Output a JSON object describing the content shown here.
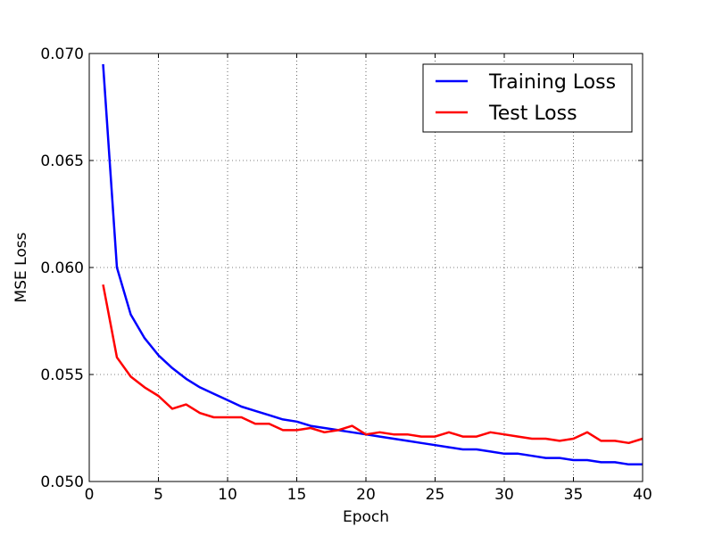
{
  "chart_data": {
    "type": "line",
    "title": "",
    "xlabel": "Epoch",
    "ylabel": "MSE Loss",
    "xlim": [
      0,
      40
    ],
    "ylim": [
      0.05,
      0.07
    ],
    "x_ticks": [
      0,
      5,
      10,
      15,
      20,
      25,
      30,
      35,
      40
    ],
    "y_ticks": [
      0.05,
      0.055,
      0.06,
      0.065,
      0.07
    ],
    "x_tick_labels": [
      "0",
      "5",
      "10",
      "15",
      "20",
      "25",
      "30",
      "35",
      "40"
    ],
    "y_tick_labels": [
      "0.050",
      "0.055",
      "0.060",
      "0.065",
      "0.070"
    ],
    "grid": true,
    "legend_position": "top-right",
    "x": [
      1,
      2,
      3,
      4,
      5,
      6,
      7,
      8,
      9,
      10,
      11,
      12,
      13,
      14,
      15,
      16,
      17,
      18,
      19,
      20,
      21,
      22,
      23,
      24,
      25,
      26,
      27,
      28,
      29,
      30,
      31,
      32,
      33,
      34,
      35,
      36,
      37,
      38,
      39,
      40
    ],
    "series": [
      {
        "name": "Training Loss",
        "color": "#0000ff",
        "values": [
          0.0695,
          0.06,
          0.0578,
          0.0567,
          0.0559,
          0.0553,
          0.0548,
          0.0544,
          0.0541,
          0.0538,
          0.0535,
          0.0533,
          0.0531,
          0.0529,
          0.0528,
          0.0526,
          0.0525,
          0.0524,
          0.0523,
          0.0522,
          0.0521,
          0.052,
          0.0519,
          0.0518,
          0.0517,
          0.0516,
          0.0515,
          0.0515,
          0.0514,
          0.0513,
          0.0513,
          0.0512,
          0.0511,
          0.0511,
          0.051,
          0.051,
          0.0509,
          0.0509,
          0.0508,
          0.0508
        ]
      },
      {
        "name": "Test Loss",
        "color": "#ff0000",
        "values": [
          0.0592,
          0.0558,
          0.0549,
          0.0544,
          0.054,
          0.0534,
          0.0536,
          0.0532,
          0.053,
          0.053,
          0.053,
          0.0527,
          0.0527,
          0.0524,
          0.0524,
          0.0525,
          0.0523,
          0.0524,
          0.0526,
          0.0522,
          0.0523,
          0.0522,
          0.0522,
          0.0521,
          0.0521,
          0.0523,
          0.0521,
          0.0521,
          0.0523,
          0.0522,
          0.0521,
          0.052,
          0.052,
          0.0519,
          0.052,
          0.0523,
          0.0519,
          0.0519,
          0.0518,
          0.052
        ]
      }
    ]
  }
}
